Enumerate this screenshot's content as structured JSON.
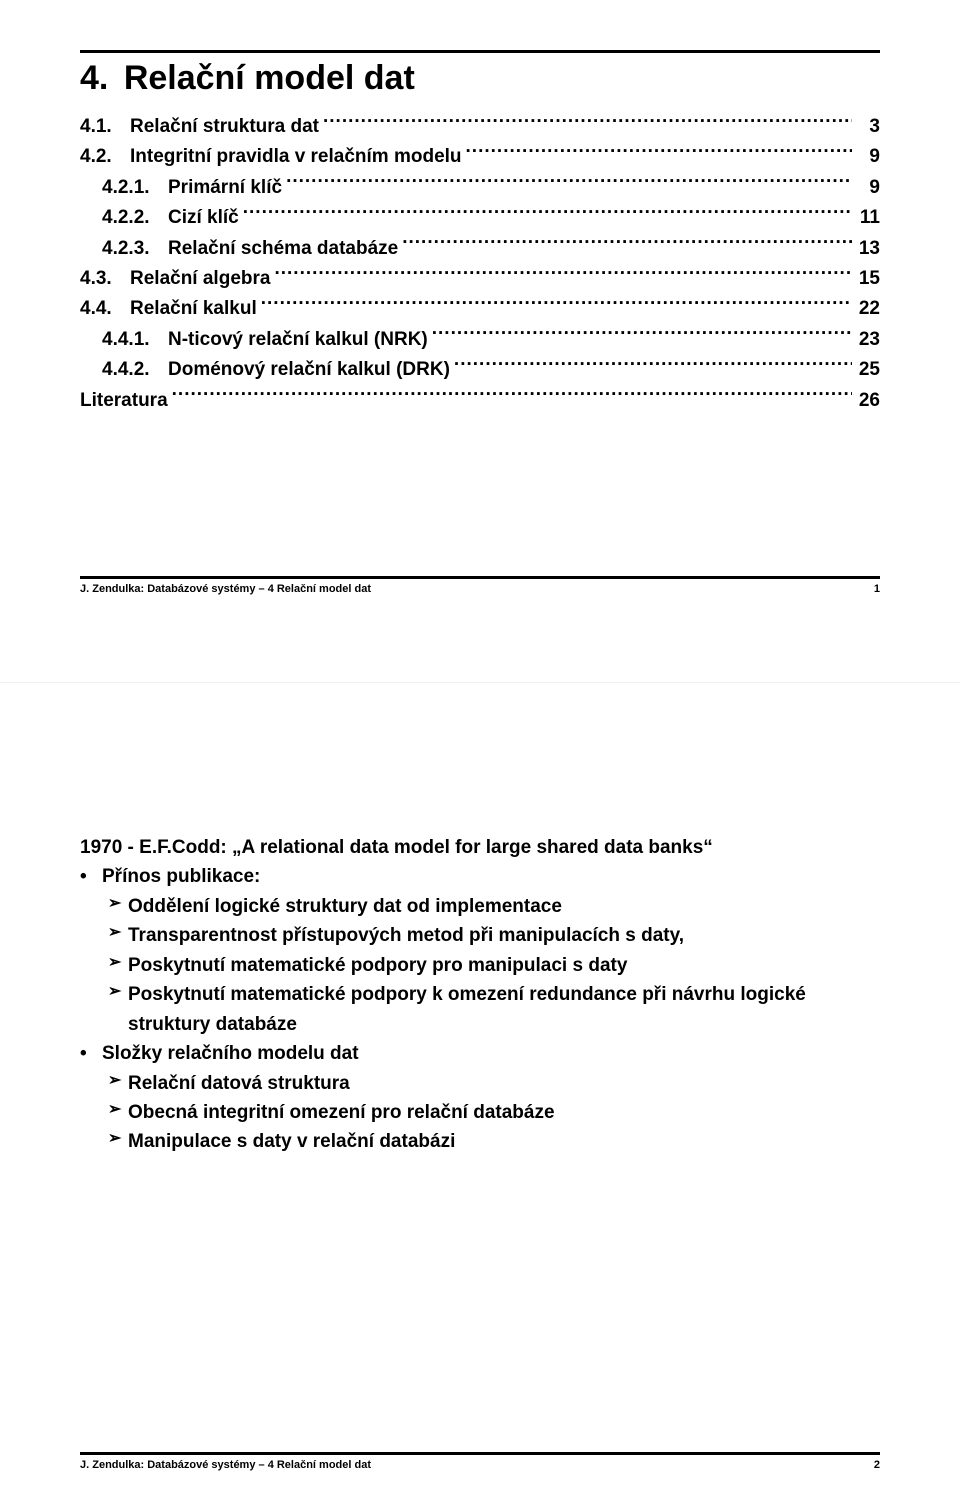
{
  "chapter": {
    "number": "4.",
    "title": "Relační model dat"
  },
  "toc": [
    {
      "level": 0,
      "num": "4.1.",
      "text": "Relační struktura dat",
      "page": "3"
    },
    {
      "level": 0,
      "num": "4.2.",
      "text": "Integritní pravidla v relačním modelu",
      "page": "9"
    },
    {
      "level": 1,
      "num": "4.2.1.",
      "text": "Primární klíč",
      "page": "9"
    },
    {
      "level": 1,
      "num": "4.2.2.",
      "text": "Cizí klíč",
      "page": "11"
    },
    {
      "level": 1,
      "num": "4.2.3.",
      "text": "Relační schéma databáze",
      "page": "13"
    },
    {
      "level": 0,
      "num": "4.3.",
      "text": "Relační algebra",
      "page": "15"
    },
    {
      "level": 0,
      "num": "4.4.",
      "text": "Relační kalkul",
      "page": "22"
    },
    {
      "level": 1,
      "num": "4.4.1.",
      "text": "N-ticový relační kalkul (NRK)",
      "page": "23"
    },
    {
      "level": 1,
      "num": "4.4.2.",
      "text": "Doménový relační kalkul (DRK)",
      "page": "25"
    },
    {
      "level": 0,
      "num": "",
      "text": "Literatura",
      "page": "26"
    }
  ],
  "footer": {
    "text": "J. Zendulka: Databázové systémy – 4 Relační model dat",
    "page1": "1",
    "page2": "2"
  },
  "page2": {
    "headline": "1970 - E.F.Codd: „A relational data model for large shared data banks“",
    "bullets": [
      {
        "text": "Přínos publikace:",
        "subs": [
          "Oddělení logické struktury dat od implementace",
          "Transparentnost přístupových metod při manipulacích s daty,",
          "Poskytnutí matematické podpory pro manipulaci s daty",
          "Poskytnutí matematické podpory k omezení redundance při návrhu logické struktury databáze"
        ]
      },
      {
        "text": "Složky relačního modelu dat",
        "subs": [
          "Relační datová struktura",
          "Obecná integritní omezení pro relační databáze",
          "Manipulace s daty v relační databázi"
        ]
      }
    ]
  },
  "glyphs": {
    "bullet": "•",
    "arrow": "➢"
  }
}
